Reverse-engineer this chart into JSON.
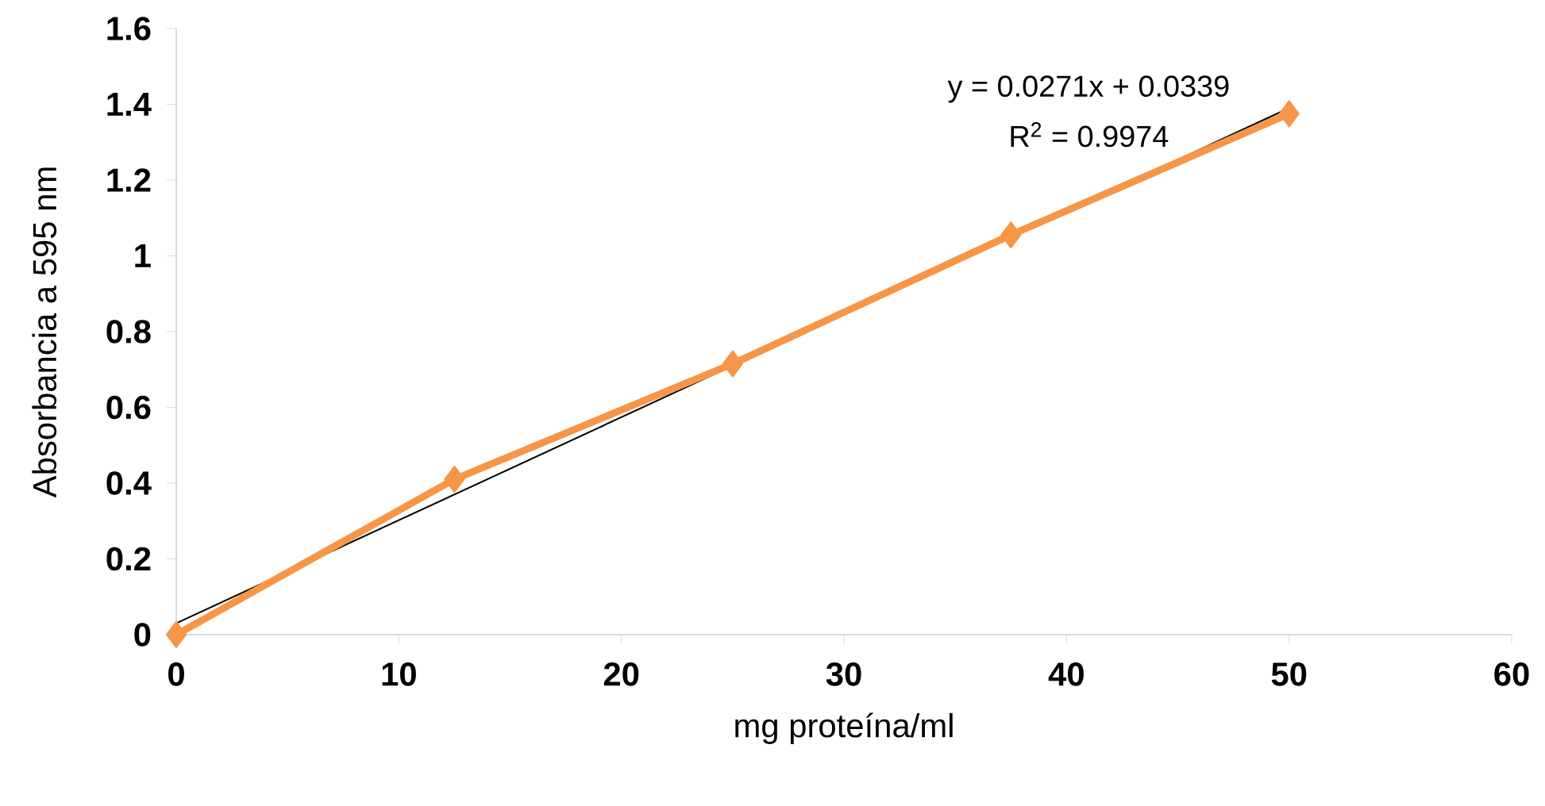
{
  "chart_data": {
    "type": "line",
    "xlabel": "mg proteína/ml",
    "ylabel": "Absorbancia a 595 nm",
    "xlim": [
      0,
      60
    ],
    "xticks": [
      0,
      10,
      20,
      30,
      40,
      50,
      60
    ],
    "ylim": [
      0,
      1.6
    ],
    "yticks": [
      0,
      {
        "value": 0.2,
        "label": "0.2"
      },
      {
        "value": 0.4,
        "label": "0.4"
      },
      {
        "value": 0.6,
        "label": "0.6"
      },
      {
        "value": 0.8,
        "label": "0.8"
      },
      1,
      {
        "value": 1.2,
        "label": "1.2"
      },
      {
        "value": 1.4,
        "label": "1.4"
      },
      {
        "value": 1.6,
        "label": "1.6"
      }
    ],
    "grid": false,
    "legend": false,
    "series": [
      {
        "color": "#000000",
        "marker": "none",
        "x": [
          0,
          50
        ],
        "values": [
          0.03,
          1.39
        ]
      },
      {
        "color": "#f79646",
        "marker": "diamond",
        "x": [
          0,
          12.5,
          25,
          37.5,
          50
        ],
        "values": [
          0,
          0.41,
          0.715,
          1.055,
          1.375
        ]
      }
    ],
    "annotations": [
      "y = 0.0271x + 0.0339",
      "R$^{2}$ = 0.9974"
    ]
  }
}
